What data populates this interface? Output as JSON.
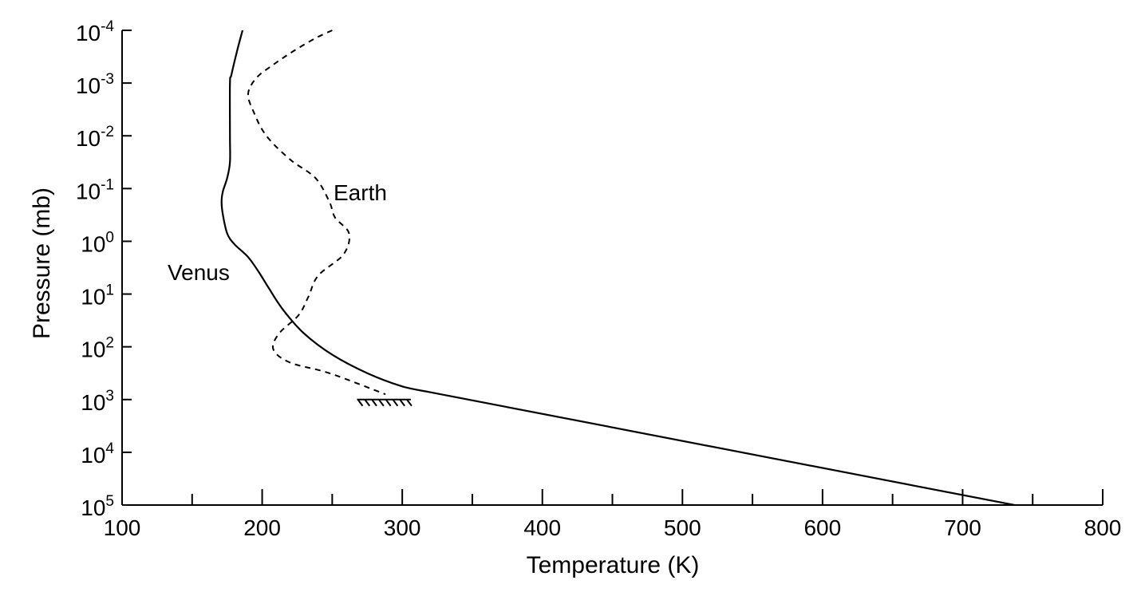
{
  "chart_data": {
    "type": "line",
    "title": "",
    "xlabel": "Temperature (K)",
    "ylabel": "Pressure (mb)",
    "xlim": [
      100,
      800
    ],
    "ylim_exponent": [
      -4,
      5
    ],
    "y_scale": "log (inverted, pressure increases downward)",
    "x_ticks": [
      {
        "value": 100,
        "label": "100"
      },
      {
        "value": 200,
        "label": "200"
      },
      {
        "value": 300,
        "label": "300"
      },
      {
        "value": 400,
        "label": "400"
      },
      {
        "value": 500,
        "label": "500"
      },
      {
        "value": 600,
        "label": "600"
      },
      {
        "value": 700,
        "label": "700"
      },
      {
        "value": 800,
        "label": "800"
      }
    ],
    "x_minor_ticks": [
      150,
      250,
      350,
      450,
      550,
      650,
      750
    ],
    "y_ticks": [
      {
        "exp": -4,
        "base": "10",
        "sup": "-4"
      },
      {
        "exp": -3,
        "base": "10",
        "sup": "-3"
      },
      {
        "exp": -2,
        "base": "10",
        "sup": "-2"
      },
      {
        "exp": -1,
        "base": "10",
        "sup": "-1"
      },
      {
        "exp": 0,
        "base": "10",
        "sup": "0"
      },
      {
        "exp": 1,
        "base": "10",
        "sup": "1"
      },
      {
        "exp": 2,
        "base": "10",
        "sup": "2"
      },
      {
        "exp": 3,
        "base": "10",
        "sup": "3"
      },
      {
        "exp": 4,
        "base": "10",
        "sup": "4"
      },
      {
        "exp": 5,
        "base": "10",
        "sup": "5"
      }
    ],
    "series": [
      {
        "name": "Venus",
        "label": "Venus",
        "style": "solid",
        "points": [
          {
            "t": 186,
            "logp": -4.0
          },
          {
            "t": 182,
            "logp": -3.6
          },
          {
            "t": 178,
            "logp": -3.15
          },
          {
            "t": 177,
            "logp": -3.0
          },
          {
            "t": 177,
            "logp": -2.0
          },
          {
            "t": 177,
            "logp": -1.5
          },
          {
            "t": 175,
            "logp": -1.2
          },
          {
            "t": 172,
            "logp": -0.95
          },
          {
            "t": 171,
            "logp": -0.75
          },
          {
            "t": 172,
            "logp": -0.5
          },
          {
            "t": 175,
            "logp": -0.15
          },
          {
            "t": 180,
            "logp": 0.05
          },
          {
            "t": 190,
            "logp": 0.3
          },
          {
            "t": 198,
            "logp": 0.6
          },
          {
            "t": 205,
            "logp": 0.9
          },
          {
            "t": 215,
            "logp": 1.3
          },
          {
            "t": 230,
            "logp": 1.75
          },
          {
            "t": 250,
            "logp": 2.15
          },
          {
            "t": 275,
            "logp": 2.5
          },
          {
            "t": 300,
            "logp": 2.75
          },
          {
            "t": 318,
            "logp": 2.85
          },
          {
            "t": 737,
            "logp": 5.0
          }
        ]
      },
      {
        "name": "Earth",
        "label": "Earth",
        "style": "dashed",
        "points": [
          {
            "t": 250,
            "logp": -4.0
          },
          {
            "t": 238,
            "logp": -3.85
          },
          {
            "t": 222,
            "logp": -3.6
          },
          {
            "t": 208,
            "logp": -3.35
          },
          {
            "t": 196,
            "logp": -3.1
          },
          {
            "t": 190,
            "logp": -2.8
          },
          {
            "t": 194,
            "logp": -2.45
          },
          {
            "t": 203,
            "logp": -2.0
          },
          {
            "t": 220,
            "logp": -1.55
          },
          {
            "t": 238,
            "logp": -1.2
          },
          {
            "t": 248,
            "logp": -0.75
          },
          {
            "t": 252,
            "logp": -0.45
          },
          {
            "t": 262,
            "logp": -0.15
          },
          {
            "t": 258,
            "logp": 0.25
          },
          {
            "t": 240,
            "logp": 0.65
          },
          {
            "t": 233,
            "logp": 1.05
          },
          {
            "t": 226,
            "logp": 1.4
          },
          {
            "t": 212,
            "logp": 1.75
          },
          {
            "t": 208,
            "logp": 2.05
          },
          {
            "t": 220,
            "logp": 2.3
          },
          {
            "t": 248,
            "logp": 2.5
          },
          {
            "t": 288,
            "logp": 2.9
          }
        ]
      }
    ],
    "annotations": [
      {
        "name": "surface-hatch",
        "t_start": 270,
        "t_end": 305,
        "logp": 3.0
      }
    ]
  }
}
